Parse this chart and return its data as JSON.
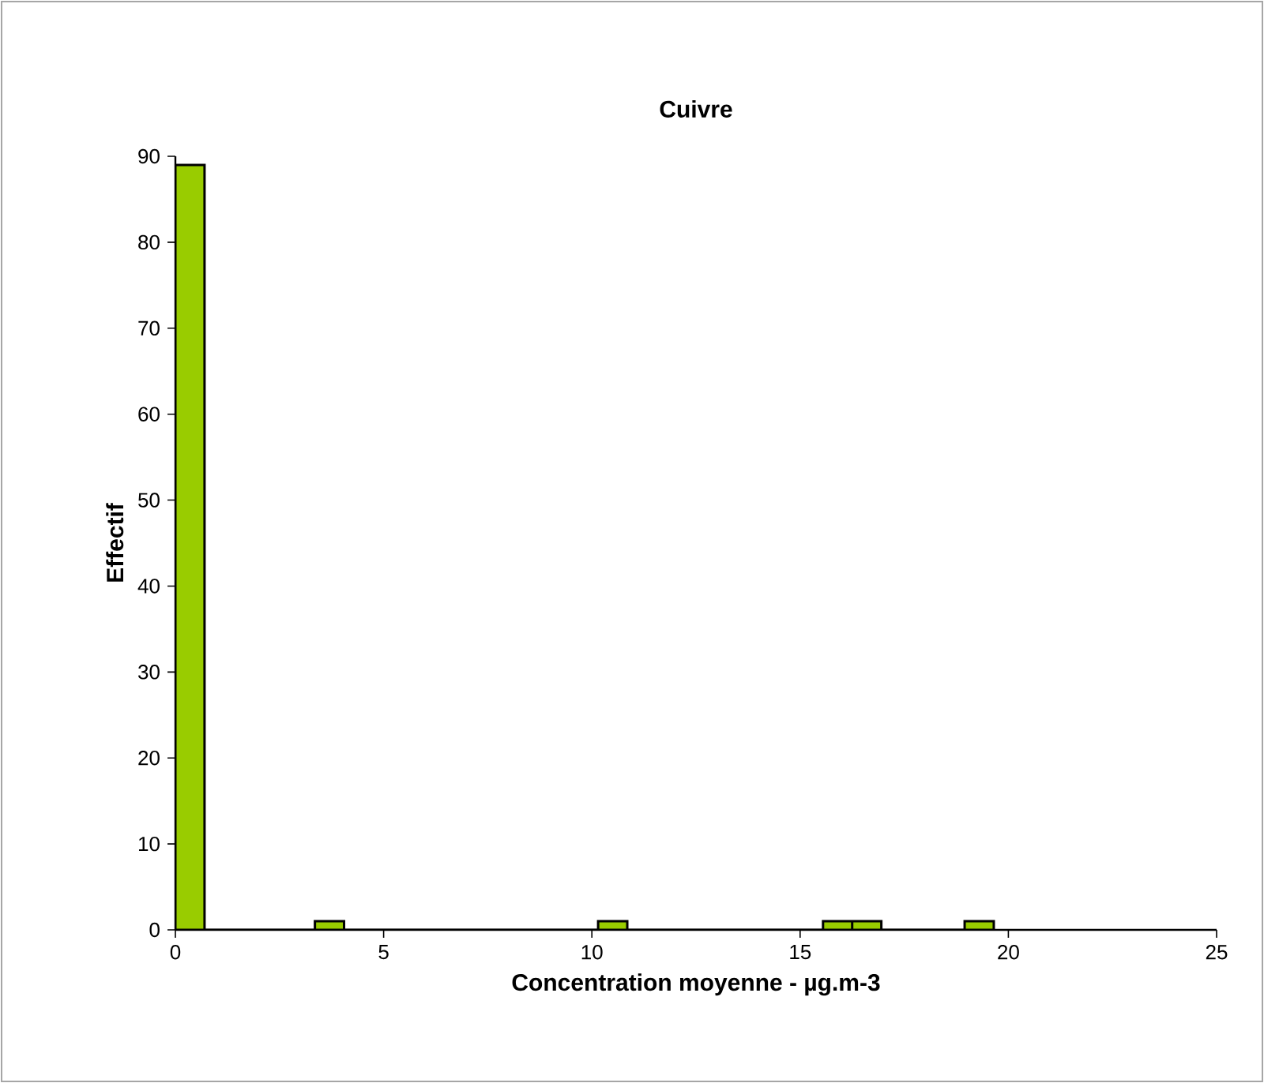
{
  "chart_data": {
    "type": "histogram",
    "title": "Cuivre",
    "xlabel": "Concentration moyenne - µg.m-3",
    "ylabel": "Effectif",
    "bins": [
      0,
      0.7,
      3.35,
      4.05,
      10.15,
      10.85,
      15.55,
      16.25,
      16.95,
      18.95,
      19.65
    ],
    "values": [
      89,
      0,
      1,
      0,
      1,
      0,
      1,
      1,
      0,
      1
    ],
    "color": "#99cc00",
    "xlim": [
      0,
      25
    ],
    "xticks": [
      0,
      5,
      10,
      15,
      20,
      25
    ],
    "ylim": [
      0,
      90
    ],
    "yticks": [
      0,
      10,
      20,
      30,
      40,
      50,
      60,
      70,
      80,
      90
    ],
    "grid": false
  }
}
